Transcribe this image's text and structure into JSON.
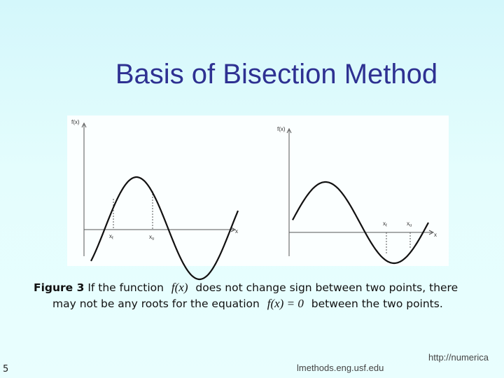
{
  "title": "Basis of Bisection Method",
  "figure": {
    "left": {
      "y_label": "f(x)",
      "x_label": "x",
      "lower": {
        "base": "x",
        "sub": "ℓ"
      },
      "upper": {
        "base": "x",
        "sub": "u"
      }
    },
    "right": {
      "y_label": "f(x)",
      "x_label": "x",
      "lower": {
        "base": "x",
        "sub": "ℓ"
      },
      "upper": {
        "base": "x",
        "sub": "u"
      }
    }
  },
  "caption": {
    "label": "Figure 3",
    "text_1": "If the function",
    "math_1": "f(x)",
    "text_2": "does not change sign between two points, there may not be any roots for the equation",
    "math_2": "f(x) = 0",
    "text_3": "between the two points."
  },
  "footer": {
    "page": "5",
    "url_start": "http://numerica",
    "url_end": "lmethods.eng.usf.edu"
  }
}
